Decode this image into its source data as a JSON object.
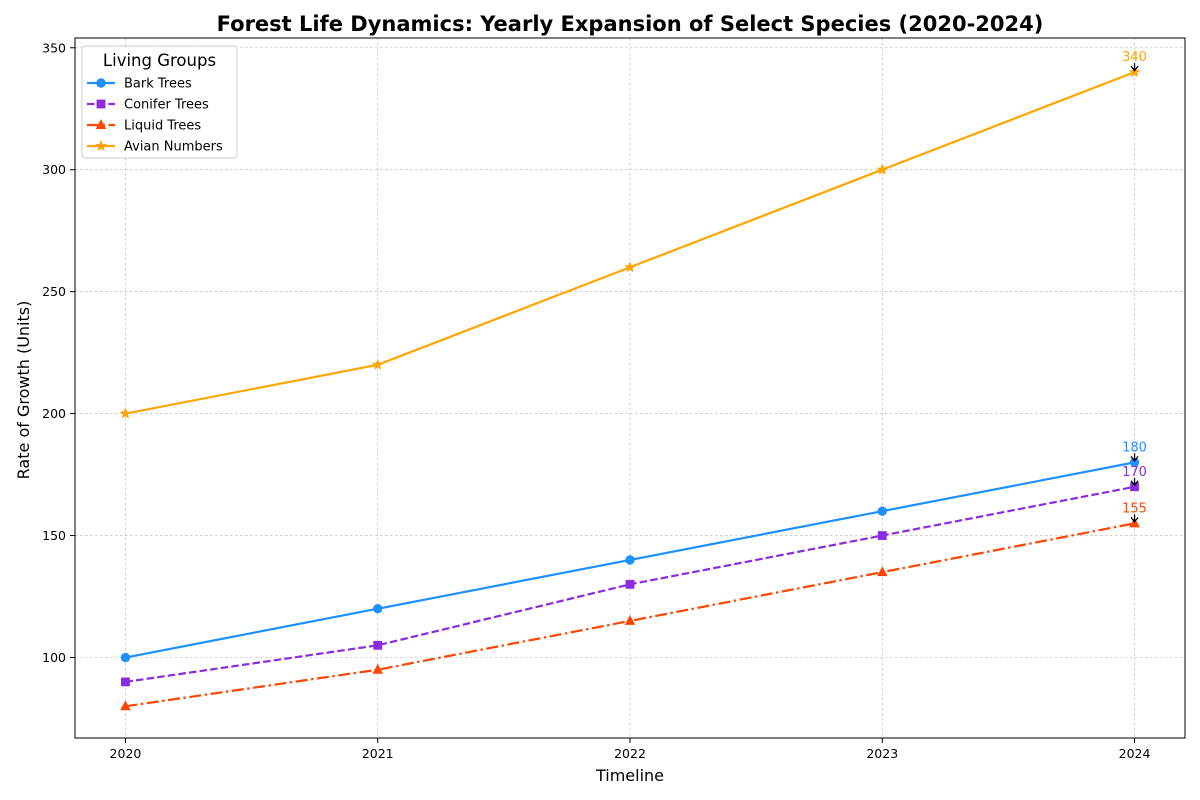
{
  "chart_data": {
    "type": "line",
    "title": "Forest Life Dynamics: Yearly Expansion of Select Species (2020-2024)",
    "xlabel": "Timeline",
    "ylabel": "Rate of Growth (Units)",
    "x": [
      2020,
      2021,
      2022,
      2023,
      2024
    ],
    "x_tick_labels": [
      "2020",
      "2021",
      "2022",
      "2023",
      "2024"
    ],
    "xlim": [
      2019.8,
      2024.2
    ],
    "ylim": [
      67,
      354
    ],
    "y_ticks": [
      100,
      150,
      200,
      250,
      300,
      350
    ],
    "y_tick_labels": [
      "100",
      "150",
      "200",
      "250",
      "300",
      "350"
    ],
    "grid": true,
    "legend": {
      "title": "Living Groups",
      "placement": "top-left"
    },
    "series": [
      {
        "name": "Bark Trees",
        "values": [
          100,
          120,
          140,
          160,
          180
        ],
        "color": "#1e90ff",
        "dash": "solid",
        "marker": "circle",
        "end_label": "180"
      },
      {
        "name": "Conifer Trees",
        "values": [
          90,
          105,
          130,
          150,
          170
        ],
        "color": "#8a2be2",
        "dash": "dashed",
        "marker": "square",
        "end_label": "170"
      },
      {
        "name": "Liquid Trees",
        "values": [
          80,
          95,
          115,
          135,
          155
        ],
        "color": "#ff4500",
        "dash": "dashdot",
        "marker": "triangle",
        "end_label": "155"
      },
      {
        "name": "Avian Numbers",
        "values": [
          200,
          220,
          260,
          300,
          340
        ],
        "color": "#ffa500",
        "dash": "solid",
        "marker": "star",
        "end_label": "340"
      }
    ]
  }
}
